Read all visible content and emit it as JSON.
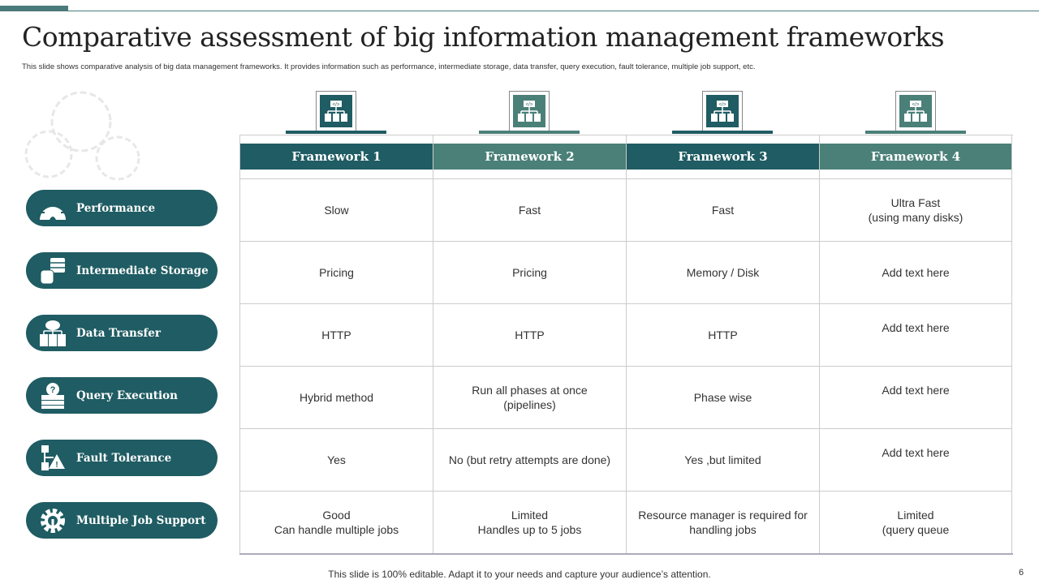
{
  "title": "Comparative assessment of big information management frameworks",
  "subtitle": "This slide shows comparative analysis of big data management  frameworks. It provides information such as performance, intermediate storage, data transfer, query execution, fault tolerance, multiple job support, etc.",
  "colors": {
    "dark": "#1f5c63",
    "light": "#4a8078"
  },
  "rows": [
    {
      "label": "Performance",
      "icon": "gauge-icon"
    },
    {
      "label": "Intermediate Storage",
      "icon": "database-icon"
    },
    {
      "label": "Data Transfer",
      "icon": "cloud-network-icon"
    },
    {
      "label": "Query Execution",
      "icon": "server-question-icon"
    },
    {
      "label": "Fault Tolerance",
      "icon": "flowchart-warning-icon"
    },
    {
      "label": "Multiple Job Support",
      "icon": "gear-wrench-icon"
    }
  ],
  "frameworks": [
    {
      "name": "Framework 1",
      "cells": [
        "Slow",
        "Pricing",
        "HTTP",
        "Hybrid method",
        "Yes",
        "Good\nCan handle multiple jobs"
      ]
    },
    {
      "name": "Framework 2",
      "cells": [
        "Fast",
        "Pricing",
        "HTTP",
        "Run all phases at once\n(pipelines)",
        "No (but retry attempts are done)",
        "Limited\nHandles up to 5 jobs"
      ]
    },
    {
      "name": "Framework 3",
      "cells": [
        "Fast",
        "Memory / Disk",
        "HTTP",
        "Phase wise",
        "Yes ,but limited",
        "Resource manager is required for\nhandling jobs"
      ]
    },
    {
      "name": "Framework 4",
      "cells": [
        "Ultra Fast\n(using many disks)",
        "Add text here",
        "Add text here",
        "Add text here",
        "Add text here",
        "Limited\n(query queue"
      ]
    }
  ],
  "footer": "This slide is 100% editable. Adapt it to your needs and capture your audience’s attention.",
  "page_number": "6"
}
